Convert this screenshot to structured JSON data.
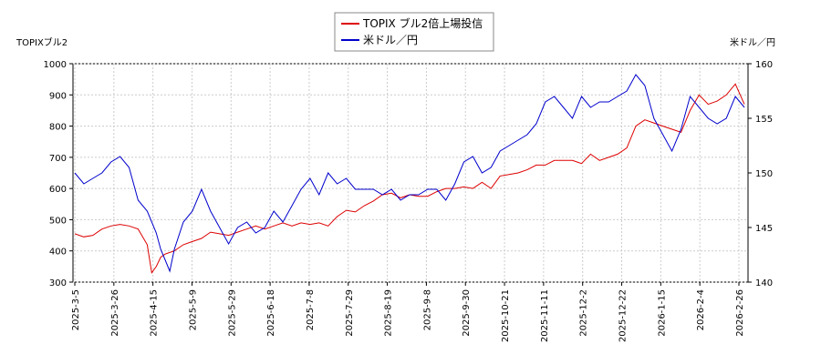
{
  "chart_data": {
    "type": "line",
    "title": "",
    "left_axis_label": "TOPIXブル2",
    "right_axis_label": "米ドル／円",
    "x_tick_labels": [
      "2025-3-5",
      "2025-3-26",
      "2025-4-15",
      "2025-5-9",
      "2025-5-29",
      "2025-6-18",
      "2025-7-8",
      "2025-7-29",
      "2025-8-19",
      "2025-9-8",
      "2025-9-30",
      "2025-10-21",
      "2025-11-11",
      "2025-12-2",
      "2025-12-22",
      "2026-1-15",
      "2026-2-4",
      "2026-2-26"
    ],
    "left_ylim": [
      300,
      1000
    ],
    "left_y_ticks": [
      "300",
      "400",
      "500",
      "600",
      "700",
      "800",
      "900",
      "1000"
    ],
    "right_ylim": [
      140,
      160
    ],
    "right_y_ticks": [
      "140",
      "145",
      "150",
      "155",
      "160"
    ],
    "grid": true,
    "legend_position": "top-center",
    "series": [
      {
        "name": "TOPIX ブル2倍上場投信",
        "axis": "left",
        "color": "#dd0000",
        "values": [
          [
            0,
            455
          ],
          [
            2,
            445
          ],
          [
            4,
            450
          ],
          [
            6,
            470
          ],
          [
            8,
            480
          ],
          [
            10,
            485
          ],
          [
            12,
            480
          ],
          [
            14,
            470
          ],
          [
            16,
            420
          ],
          [
            17,
            330
          ],
          [
            18,
            350
          ],
          [
            19,
            380
          ],
          [
            20,
            390
          ],
          [
            22,
            400
          ],
          [
            24,
            420
          ],
          [
            26,
            430
          ],
          [
            28,
            440
          ],
          [
            30,
            460
          ],
          [
            32,
            455
          ],
          [
            34,
            450
          ],
          [
            36,
            460
          ],
          [
            38,
            470
          ],
          [
            40,
            480
          ],
          [
            42,
            470
          ],
          [
            44,
            480
          ],
          [
            46,
            490
          ],
          [
            48,
            480
          ],
          [
            50,
            490
          ],
          [
            52,
            485
          ],
          [
            54,
            490
          ],
          [
            56,
            480
          ],
          [
            58,
            510
          ],
          [
            60,
            530
          ],
          [
            62,
            525
          ],
          [
            64,
            545
          ],
          [
            66,
            560
          ],
          [
            68,
            580
          ],
          [
            70,
            585
          ],
          [
            72,
            570
          ],
          [
            74,
            580
          ],
          [
            76,
            575
          ],
          [
            78,
            575
          ],
          [
            80,
            590
          ],
          [
            82,
            600
          ],
          [
            84,
            600
          ],
          [
            86,
            605
          ],
          [
            88,
            600
          ],
          [
            90,
            620
          ],
          [
            92,
            600
          ],
          [
            94,
            640
          ],
          [
            96,
            645
          ],
          [
            98,
            650
          ],
          [
            100,
            660
          ],
          [
            102,
            675
          ],
          [
            104,
            675
          ],
          [
            106,
            690
          ],
          [
            108,
            690
          ],
          [
            110,
            690
          ],
          [
            112,
            680
          ],
          [
            114,
            710
          ],
          [
            116,
            690
          ],
          [
            118,
            700
          ],
          [
            120,
            710
          ],
          [
            122,
            730
          ],
          [
            124,
            800
          ],
          [
            126,
            820
          ],
          [
            128,
            810
          ],
          [
            130,
            800
          ],
          [
            132,
            790
          ],
          [
            134,
            780
          ],
          [
            136,
            850
          ],
          [
            138,
            900
          ],
          [
            140,
            870
          ],
          [
            142,
            880
          ],
          [
            144,
            900
          ],
          [
            146,
            935
          ],
          [
            148,
            870
          ]
        ]
      },
      {
        "name": "米ドル／円",
        "axis": "right",
        "color": "#0000cc",
        "values": [
          [
            0,
            150
          ],
          [
            2,
            149
          ],
          [
            4,
            149.5
          ],
          [
            6,
            150
          ],
          [
            8,
            151
          ],
          [
            10,
            151.5
          ],
          [
            12,
            150.5
          ],
          [
            14,
            147.5
          ],
          [
            16,
            146.5
          ],
          [
            18,
            144.5
          ],
          [
            19,
            143
          ],
          [
            20,
            142
          ],
          [
            21,
            141
          ],
          [
            22,
            143
          ],
          [
            24,
            145.5
          ],
          [
            26,
            146.5
          ],
          [
            28,
            148.5
          ],
          [
            30,
            146.5
          ],
          [
            32,
            145
          ],
          [
            34,
            143.5
          ],
          [
            36,
            145
          ],
          [
            38,
            145.5
          ],
          [
            40,
            144.5
          ],
          [
            42,
            145
          ],
          [
            44,
            146.5
          ],
          [
            46,
            145.5
          ],
          [
            48,
            147
          ],
          [
            50,
            148.5
          ],
          [
            52,
            149.5
          ],
          [
            54,
            148
          ],
          [
            56,
            150
          ],
          [
            58,
            149
          ],
          [
            60,
            149.5
          ],
          [
            62,
            148.5
          ],
          [
            64,
            148.5
          ],
          [
            66,
            148.5
          ],
          [
            68,
            148
          ],
          [
            70,
            148.5
          ],
          [
            72,
            147.5
          ],
          [
            74,
            148
          ],
          [
            76,
            148
          ],
          [
            78,
            148.5
          ],
          [
            80,
            148.5
          ],
          [
            82,
            147.5
          ],
          [
            84,
            149
          ],
          [
            86,
            151
          ],
          [
            88,
            151.5
          ],
          [
            90,
            150
          ],
          [
            92,
            150.5
          ],
          [
            94,
            152
          ],
          [
            96,
            152.5
          ],
          [
            98,
            153
          ],
          [
            100,
            153.5
          ],
          [
            102,
            154.5
          ],
          [
            104,
            156.5
          ],
          [
            106,
            157
          ],
          [
            108,
            156
          ],
          [
            110,
            155
          ],
          [
            112,
            157
          ],
          [
            114,
            156
          ],
          [
            116,
            156.5
          ],
          [
            118,
            156.5
          ],
          [
            120,
            157
          ],
          [
            122,
            157.5
          ],
          [
            124,
            159
          ],
          [
            126,
            158
          ],
          [
            128,
            155
          ],
          [
            130,
            153.5
          ],
          [
            132,
            152
          ],
          [
            134,
            154
          ],
          [
            136,
            157
          ],
          [
            138,
            156
          ],
          [
            140,
            155
          ],
          [
            142,
            154.5
          ],
          [
            144,
            155
          ],
          [
            146,
            157
          ],
          [
            148,
            156
          ]
        ]
      }
    ]
  }
}
